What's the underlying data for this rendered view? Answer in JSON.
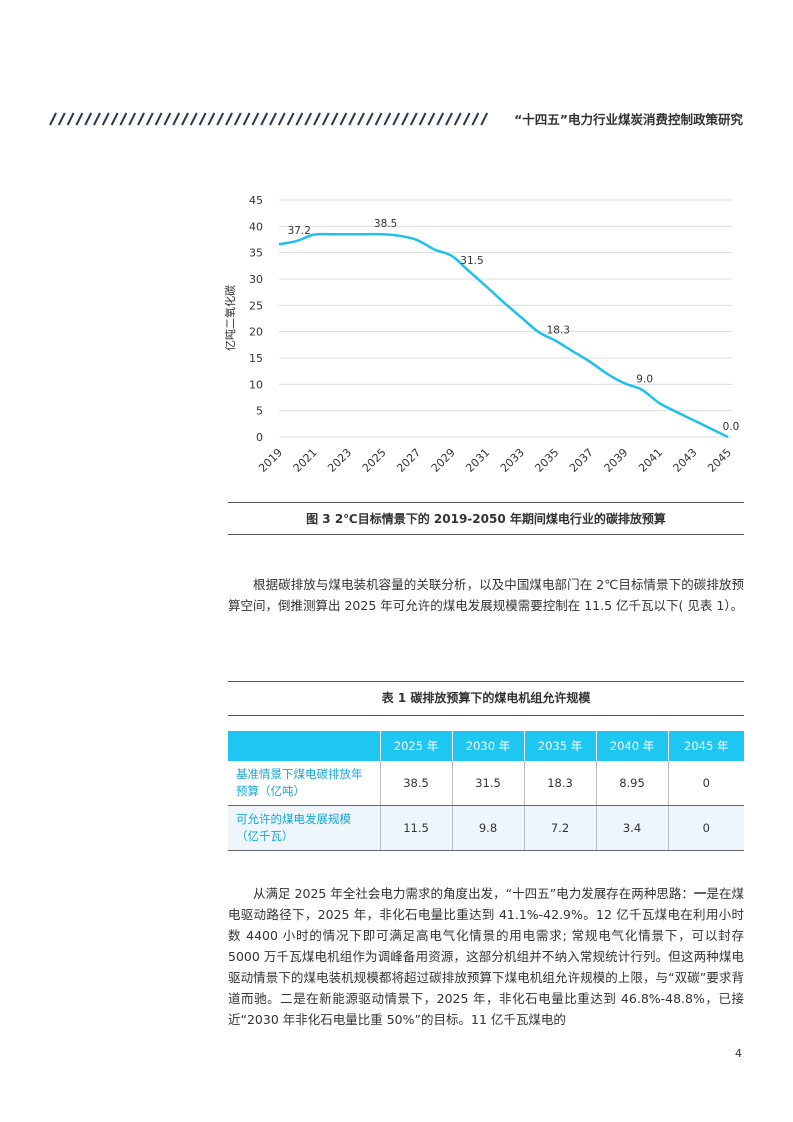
{
  "header": {
    "title": "“十四五”电力行业煤炭消费控制政策研究"
  },
  "chart_data": {
    "type": "line",
    "ylabel": "亿吨二氧化碳",
    "ylim": [
      0,
      45
    ],
    "yticks": [
      "0",
      "5",
      "10",
      "15",
      "20",
      "25",
      "30",
      "35",
      "40",
      "45"
    ],
    "xticks": [
      "2019",
      "2021",
      "2023",
      "2025",
      "2027",
      "2029",
      "2031",
      "2033",
      "2035",
      "2037",
      "2039",
      "2041",
      "2043",
      "2045"
    ],
    "series": [
      {
        "x": [
          2019,
          2020,
          2021,
          2022,
          2023,
          2024,
          2025,
          2026,
          2027,
          2028,
          2029,
          2030,
          2031,
          2032,
          2033,
          2034,
          2035,
          2036,
          2037,
          2038,
          2039,
          2040,
          2041,
          2042,
          2043,
          2044,
          2045
        ],
        "values": [
          36.6,
          37.2,
          38.4,
          38.5,
          38.5,
          38.5,
          38.5,
          38.2,
          37.4,
          35.6,
          34.4,
          31.5,
          28.6,
          25.6,
          22.8,
          20.0,
          18.3,
          16.3,
          14.3,
          12.0,
          10.2,
          9.0,
          6.5,
          4.8,
          3.2,
          1.6,
          0.0
        ]
      }
    ],
    "data_labels": [
      {
        "x": 2020,
        "y": 37.2,
        "text": "37.2"
      },
      {
        "x": 2025,
        "y": 38.5,
        "text": "38.5"
      },
      {
        "x": 2030,
        "y": 31.5,
        "text": "31.5"
      },
      {
        "x": 2035,
        "y": 18.3,
        "text": "18.3"
      },
      {
        "x": 2040,
        "y": 9.0,
        "text": "9.0"
      },
      {
        "x": 2045,
        "y": 0.0,
        "text": "0.0"
      }
    ],
    "line_color": "#1ec0ee"
  },
  "figure_caption": "图 3 2℃目标情景下的 2019-2050 年期间煤电行业的碳排放预算",
  "paragraph1": "根据碳排放与煤电装机容量的关联分析，以及中国煤电部门在 2℃目标情景下的碳排放预算空间，倒推测算出 2025 年可允许的煤电发展规模需要控制在 11.5 亿千瓦以下( 见表 1）。",
  "table": {
    "caption": "表 1 碳排放预算下的煤电机组允许规模",
    "headers": [
      "",
      "2025 年",
      "2030 年",
      "2035 年",
      "2040 年",
      "2045 年"
    ],
    "rows": [
      {
        "label": "基准情景下煤电碳排放年预算（亿吨）",
        "cells": [
          "38.5",
          "31.5",
          "18.3",
          "8.95",
          "0"
        ]
      },
      {
        "label": "可允许的煤电发展规模（亿千瓦）",
        "cells": [
          "11.5",
          "9.8",
          "7.2",
          "3.4",
          "0"
        ]
      }
    ],
    "header_color": "#1ec6f2"
  },
  "paragraph2": {
    "start": "从满足 2025 年全社会电力需求的角度出发，“十四五”电力发展存在两种思路：",
    "bold_lead": "一",
    "rest": "是在煤电驱动路径下，2025 年，非化石电量比重达到 41.1%-42.9%。12 亿千瓦煤电在利用小时数 4400 小时的情况下即可满足高电气化情景的用电需求; 常规电气化情景下，可以封存 5000 万千瓦煤电机组作为调峰备用资源，这部分机组并不纳入常规统计行列。但这两种煤电驱动情景下的煤电装机规模都将超过碳排放预算下煤电机组允许规模的上限，与“双碳”要求背道而驰。二是在新能源驱动情景下，2025 年，非化石电量比重达到 46.8%-48.8%，已接近“2030 年非化石电量比重 50%”的目标。11 亿千瓦煤电的"
  },
  "page_number": "4"
}
